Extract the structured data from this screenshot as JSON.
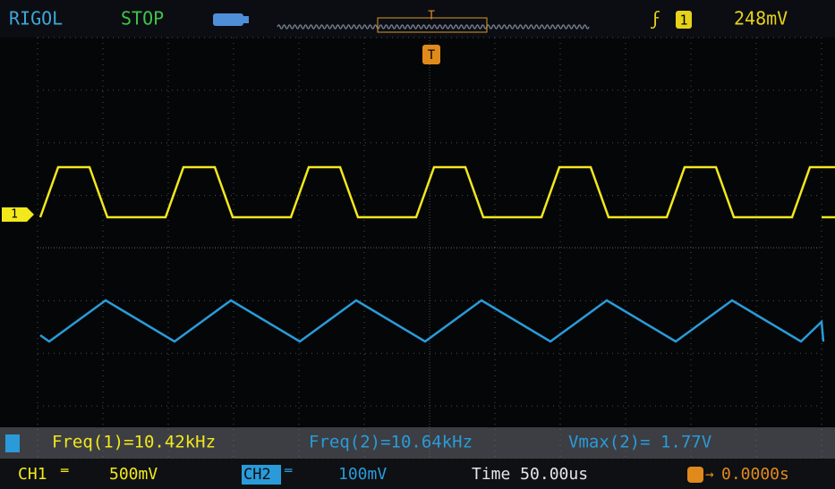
{
  "header": {
    "brand": "RIGOL",
    "status": "STOP",
    "trigger_marker": "T",
    "trigger_source": "1",
    "trigger_level": "248mV"
  },
  "channel_marker": "1",
  "measurements": [
    "Freq(1)=10.42kHz",
    "Freq(2)=10.64kHz",
    "Vmax(2)= 1.77V"
  ],
  "footer": {
    "ch1_label": "CH1",
    "ch1_scale": "500mV",
    "ch2_label": "CH2",
    "ch2_scale": "100mV",
    "timebase": "Time 50.00us",
    "trigger_offset": "0.0000s"
  }
}
